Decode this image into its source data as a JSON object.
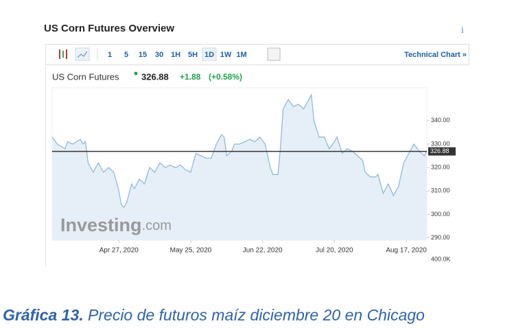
{
  "widget": {
    "title": "US Corn Futures Overview",
    "info": "i",
    "toolbar": {
      "intervals": [
        "1",
        "5",
        "15",
        "30",
        "1H",
        "5H",
        "1D",
        "1W",
        "1M"
      ],
      "technical_chart": "Technical Chart »"
    },
    "quote": {
      "name": "US Corn Futures",
      "price": "326.88",
      "change": "+1.88",
      "change_pct": "(+0.58%)"
    },
    "watermark": {
      "brand": "Investing",
      "suffix": ".com"
    }
  },
  "chart_data": {
    "type": "area",
    "x": [
      "2020-04-01",
      "2020-04-03",
      "2020-04-06",
      "2020-04-07",
      "2020-04-09",
      "2020-04-12",
      "2020-04-13",
      "2020-04-14",
      "2020-04-15",
      "2020-04-17",
      "2020-04-19",
      "2020-04-21",
      "2020-04-23",
      "2020-04-25",
      "2020-04-27",
      "2020-04-28",
      "2020-04-29",
      "2020-04-30",
      "2020-05-02",
      "2020-05-03",
      "2020-05-05",
      "2020-05-07",
      "2020-05-09",
      "2020-05-11",
      "2020-05-13",
      "2020-05-15",
      "2020-05-17",
      "2020-05-19",
      "2020-05-21",
      "2020-05-23",
      "2020-05-25",
      "2020-05-27",
      "2020-05-29",
      "2020-05-31",
      "2020-06-02",
      "2020-06-04",
      "2020-06-06",
      "2020-06-07",
      "2020-06-08",
      "2020-06-10",
      "2020-06-11",
      "2020-06-13",
      "2020-06-15",
      "2020-06-17",
      "2020-06-19",
      "2020-06-21",
      "2020-06-23",
      "2020-06-25",
      "2020-06-26",
      "2020-06-28",
      "2020-06-29",
      "2020-06-30",
      "2020-07-02",
      "2020-07-04",
      "2020-07-06",
      "2020-07-08",
      "2020-07-10",
      "2020-07-11",
      "2020-07-12",
      "2020-07-14",
      "2020-07-16",
      "2020-07-18",
      "2020-07-20",
      "2020-07-21",
      "2020-07-23",
      "2020-07-25",
      "2020-07-27",
      "2020-07-29",
      "2020-07-31",
      "2020-08-01",
      "2020-08-03",
      "2020-08-05",
      "2020-08-06",
      "2020-08-08",
      "2020-08-10",
      "2020-08-12",
      "2020-08-14",
      "2020-08-16",
      "2020-08-18",
      "2020-08-20",
      "2020-08-22",
      "2020-08-24",
      "2020-08-25"
    ],
    "series": [
      {
        "name": "US Corn Futures",
        "color": "#8fbad9",
        "fill": "#e6eff7",
        "values": [
          333,
          330,
          328,
          331,
          330,
          332,
          330,
          331,
          322,
          318,
          322,
          318,
          320,
          318,
          310,
          304,
          303,
          305,
          313,
          311,
          315,
          313,
          320,
          318,
          322,
          320,
          321,
          320,
          321,
          319,
          318,
          326,
          325,
          324,
          324,
          330,
          334,
          333,
          325,
          327,
          330,
          330,
          331,
          332,
          331,
          333,
          330,
          320,
          317,
          317,
          329,
          345,
          349,
          346,
          347,
          345,
          349,
          351,
          340,
          333,
          333,
          328,
          331,
          333,
          326,
          328,
          327,
          325,
          323,
          318,
          316,
          316,
          317,
          309,
          313,
          308,
          312,
          322,
          326,
          330,
          327,
          325,
          327
        ]
      }
    ],
    "xlim": [
      "2020-04-01",
      "2020-08-25"
    ],
    "xticks": [
      {
        "value": "2020-04-27",
        "label": "Apr 27, 2020"
      },
      {
        "value": "2020-05-25",
        "label": "May 25, 2020"
      },
      {
        "value": "2020-06-22",
        "label": "Jun 22, 2020"
      },
      {
        "value": "2020-07-20",
        "label": "Jul 20, 2020"
      },
      {
        "value": "2020-08-17",
        "label": "Aug 17, 2020"
      }
    ],
    "ylim": [
      289,
      354
    ],
    "yticks": [
      {
        "value": 290,
        "label": "290.00"
      },
      {
        "value": 300,
        "label": "300.00"
      },
      {
        "value": 310,
        "label": "310.00"
      },
      {
        "value": 320,
        "label": "320.00"
      },
      {
        "value": 330,
        "label": "330.00"
      },
      {
        "value": 340,
        "label": "340.00"
      }
    ],
    "reference_line": {
      "value": 326.88,
      "label": "326.88",
      "color": "#333333"
    },
    "volume_label": "400.0K"
  },
  "caption": {
    "number": "Gráfica 13.",
    "text": " Precio de futuros maíz diciembre 20 en Chicago"
  }
}
